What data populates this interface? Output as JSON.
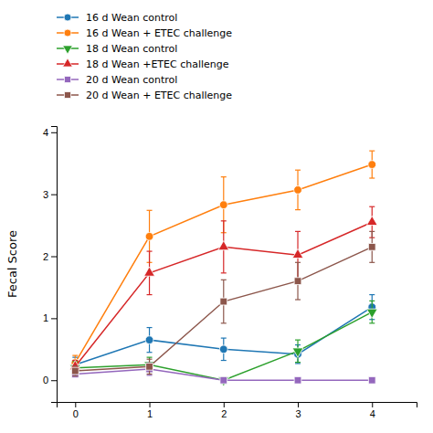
{
  "chart_data": {
    "type": "line",
    "ylabel": "Fecal Score",
    "x": [
      0,
      1,
      2,
      3,
      4
    ],
    "series": [
      {
        "name": "16 d Wean control",
        "values": [
          0.25,
          0.65,
          0.5,
          0.42,
          1.18
        ],
        "errors": [
          0.12,
          0.2,
          0.18,
          0.15,
          0.2
        ],
        "marker": "circle"
      },
      {
        "name": "16 d Wean + ETEC challenge",
        "values": [
          0.28,
          2.32,
          2.83,
          3.07,
          3.48
        ],
        "errors": [
          0.12,
          0.42,
          0.45,
          0.32,
          0.22
        ],
        "marker": "circle"
      },
      {
        "name": "18 d Wean control",
        "values": [
          0.2,
          0.25,
          0.0,
          0.47,
          1.1
        ],
        "errors": [
          0.1,
          0.12,
          0.05,
          0.18,
          0.18
        ],
        "marker": "triangle-down"
      },
      {
        "name": "18 d Wean +ETEC challenge",
        "values": [
          0.22,
          1.73,
          2.15,
          2.02,
          2.55
        ],
        "errors": [
          0.1,
          0.35,
          0.42,
          0.38,
          0.25
        ],
        "marker": "triangle-up"
      },
      {
        "name": "20 d Wean control",
        "values": [
          0.1,
          0.18,
          0.0,
          0.0,
          0.0
        ],
        "errors": [
          0.05,
          0.1,
          0.02,
          0.02,
          0.02
        ],
        "marker": "square"
      },
      {
        "name": "20 d Wean + ETEC challenge",
        "values": [
          0.15,
          0.22,
          1.27,
          1.6,
          2.15
        ],
        "errors": [
          0.08,
          0.12,
          0.35,
          0.3,
          0.25
        ],
        "marker": "square"
      }
    ],
    "xlim": [
      -0.25,
      4.6
    ],
    "ylim": [
      -0.35,
      4.1
    ],
    "xticks": [
      0,
      1,
      2,
      3,
      4
    ],
    "yticks": [
      0,
      1,
      2,
      3,
      4
    ],
    "grid": false,
    "legend": "top"
  }
}
